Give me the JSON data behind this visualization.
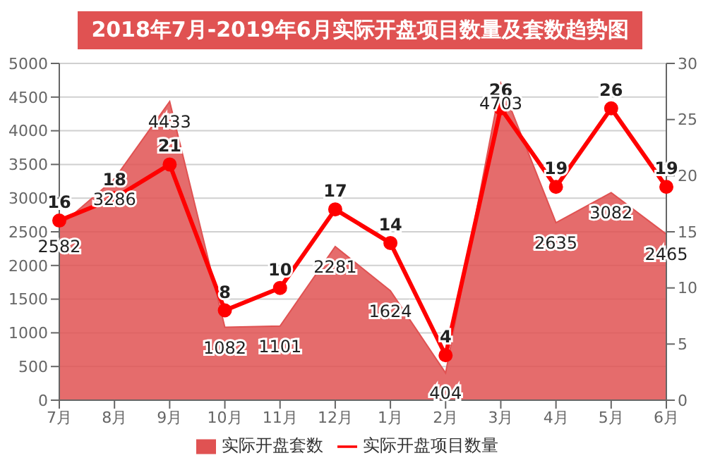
{
  "chart_data": {
    "type": "area",
    "title": "2018年7月-2019年6月实际开盘项目数量及套数趋势图",
    "categories": [
      "7月",
      "8月",
      "9月",
      "10月",
      "11月",
      "12月",
      "1月",
      "2月",
      "3月",
      "4月",
      "5月",
      "6月"
    ],
    "series": [
      {
        "name": "实际开盘套数",
        "color": "#e05252",
        "values": [
          2582,
          3286,
          4433,
          1082,
          1101,
          2281,
          1624,
          404,
          4703,
          2635,
          3082,
          2465
        ]
      },
      {
        "name": "实际开盘项目数量",
        "type": "line",
        "axis": "y2",
        "marker": "circle",
        "color": "#ff0000",
        "values": [
          16,
          18,
          21,
          8,
          10,
          17,
          14,
          4,
          26,
          19,
          26,
          19
        ]
      }
    ],
    "ylim": [
      0,
      5000
    ],
    "yticks": [
      0,
      500,
      1000,
      1500,
      2000,
      2500,
      3000,
      3500,
      4000,
      4500,
      5000
    ],
    "y2lim": [
      0,
      30
    ],
    "y2ticks": [
      0,
      5,
      10,
      15,
      20,
      25,
      30
    ],
    "grid": "y",
    "legend": "bottom",
    "data_labels": true
  }
}
